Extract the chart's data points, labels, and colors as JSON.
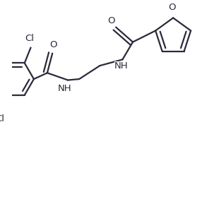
{
  "bg_color": "#ffffff",
  "line_color": "#2a2a3a",
  "text_color": "#2a2a3a",
  "line_width": 1.6,
  "font_size": 9.5,
  "figsize": [
    3.1,
    3.02
  ],
  "dpi": 100,
  "xlim": [
    0.0,
    10.0
  ],
  "ylim": [
    0.0,
    10.0
  ]
}
